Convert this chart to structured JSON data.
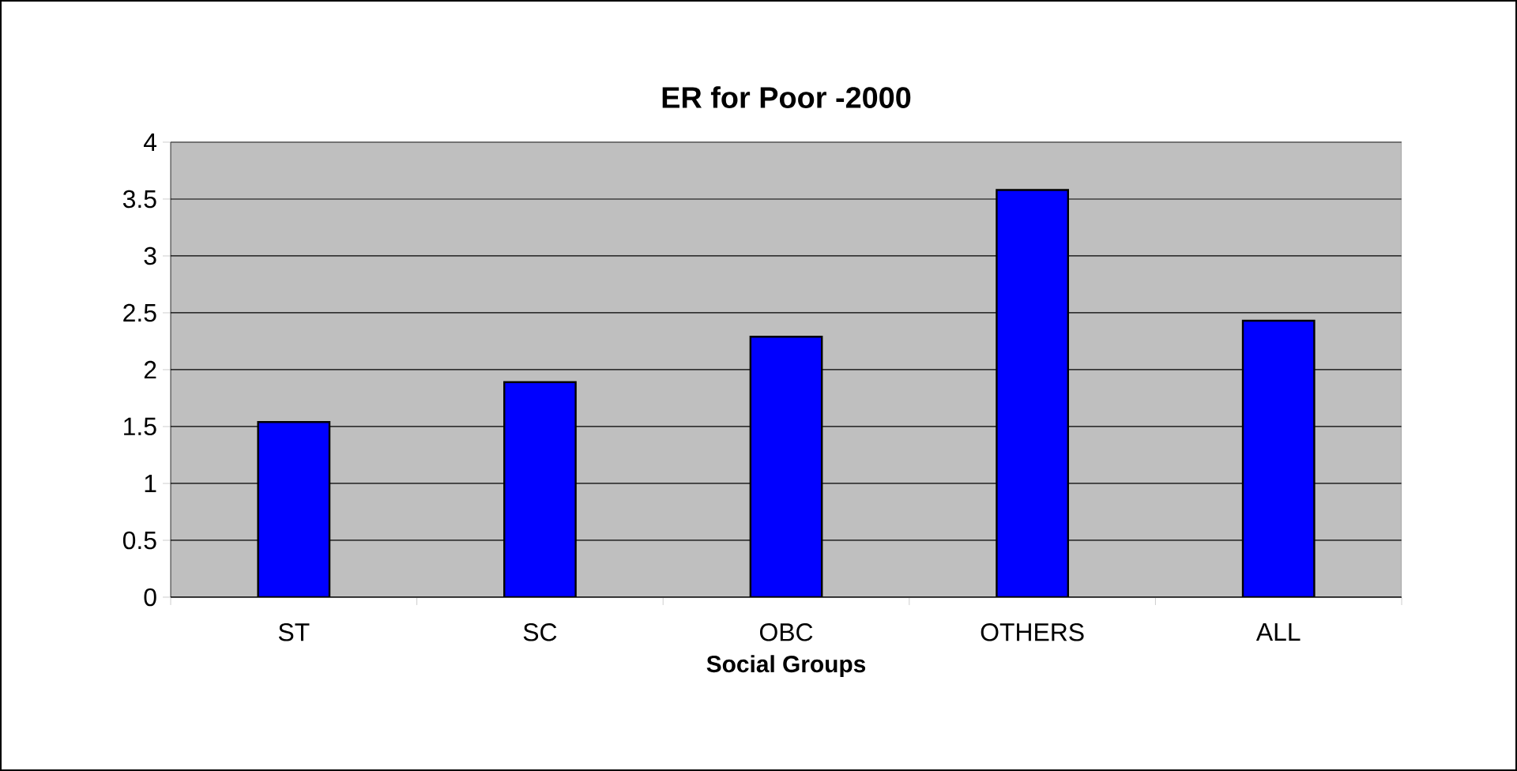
{
  "chart_data": {
    "type": "bar",
    "title": "ER for Poor -2000",
    "xlabel": "Social Groups",
    "categories": [
      "ST",
      "SC",
      "OBC",
      "OTHERS",
      "ALL"
    ],
    "values": [
      1.54,
      1.89,
      2.29,
      3.58,
      2.43
    ],
    "color": "#0000ff",
    "ylim": [
      0,
      4
    ],
    "yticks": [
      0,
      0.5,
      1,
      1.5,
      2,
      2.5,
      3,
      3.5,
      4
    ],
    "grid": "y"
  }
}
